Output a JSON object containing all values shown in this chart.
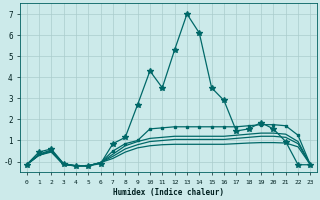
{
  "title": "",
  "xlabel": "Humidex (Indice chaleur)",
  "bg_color": "#cceaea",
  "grid_color": "#aacccc",
  "line_color": "#006868",
  "curves": [
    {
      "x": [
        0,
        1,
        2,
        3,
        4,
        5,
        6,
        7,
        8,
        9,
        10,
        11,
        12,
        13,
        14,
        15,
        16,
        17,
        18,
        19,
        20,
        21,
        22,
        23
      ],
      "y": [
        -0.15,
        0.45,
        0.6,
        -0.1,
        -0.2,
        -0.2,
        -0.1,
        0.85,
        1.15,
        2.7,
        4.3,
        3.5,
        5.3,
        7.0,
        6.1,
        3.5,
        2.9,
        1.45,
        1.55,
        1.85,
        1.55,
        0.95,
        -0.15,
        -0.15
      ],
      "marker": "*",
      "markersize": 4
    },
    {
      "x": [
        0,
        1,
        2,
        3,
        4,
        5,
        6,
        7,
        8,
        9,
        10,
        11,
        12,
        13,
        14,
        15,
        16,
        17,
        18,
        19,
        20,
        21,
        22,
        23
      ],
      "y": [
        -0.15,
        0.35,
        0.55,
        -0.1,
        -0.2,
        -0.2,
        -0.05,
        0.5,
        0.85,
        1.0,
        1.55,
        1.6,
        1.65,
        1.65,
        1.65,
        1.65,
        1.65,
        1.65,
        1.7,
        1.75,
        1.75,
        1.7,
        1.25,
        -0.15
      ],
      "marker": "s",
      "markersize": 2
    },
    {
      "x": [
        0,
        1,
        2,
        3,
        4,
        5,
        6,
        7,
        8,
        9,
        10,
        11,
        12,
        13,
        14,
        15,
        16,
        17,
        18,
        19,
        20,
        21,
        22,
        23
      ],
      "y": [
        -0.15,
        0.3,
        0.5,
        -0.15,
        -0.2,
        -0.2,
        -0.05,
        0.35,
        0.75,
        0.95,
        1.1,
        1.15,
        1.2,
        1.2,
        1.2,
        1.2,
        1.2,
        1.25,
        1.3,
        1.35,
        1.35,
        1.3,
        0.95,
        -0.15
      ],
      "marker": "",
      "markersize": 0
    },
    {
      "x": [
        0,
        1,
        2,
        3,
        4,
        5,
        6,
        7,
        8,
        9,
        10,
        11,
        12,
        13,
        14,
        15,
        16,
        17,
        18,
        19,
        20,
        21,
        22,
        23
      ],
      "y": [
        -0.15,
        0.3,
        0.5,
        -0.15,
        -0.2,
        -0.2,
        -0.05,
        0.25,
        0.6,
        0.8,
        0.95,
        1.0,
        1.05,
        1.05,
        1.05,
        1.05,
        1.05,
        1.1,
        1.15,
        1.2,
        1.2,
        1.15,
        0.85,
        -0.15
      ],
      "marker": "",
      "markersize": 0
    },
    {
      "x": [
        0,
        1,
        2,
        3,
        4,
        5,
        6,
        7,
        8,
        9,
        10,
        11,
        12,
        13,
        14,
        15,
        16,
        17,
        18,
        19,
        20,
        21,
        22,
        23
      ],
      "y": [
        -0.15,
        0.3,
        0.45,
        -0.15,
        -0.2,
        -0.2,
        -0.05,
        0.15,
        0.45,
        0.65,
        0.75,
        0.8,
        0.82,
        0.82,
        0.82,
        0.82,
        0.82,
        0.85,
        0.88,
        0.9,
        0.9,
        0.88,
        0.7,
        -0.15
      ],
      "marker": "",
      "markersize": 0
    }
  ],
  "xlim": [
    -0.5,
    23.5
  ],
  "ylim": [
    -0.5,
    7.5
  ],
  "yticks": [
    0,
    1,
    2,
    3,
    4,
    5,
    6,
    7
  ],
  "ytick_labels": [
    "-0",
    "1",
    "2",
    "3",
    "4",
    "5",
    "6",
    "7"
  ],
  "xticks": [
    0,
    1,
    2,
    3,
    4,
    5,
    6,
    7,
    8,
    9,
    10,
    11,
    12,
    13,
    14,
    15,
    16,
    17,
    18,
    19,
    20,
    21,
    22,
    23
  ],
  "xtick_labels": [
    "0",
    "1",
    "2",
    "3",
    "4",
    "5",
    "6",
    "7",
    "8",
    "9",
    "10",
    "11",
    "12",
    "13",
    "14",
    "15",
    "16",
    "17",
    "18",
    "19",
    "20",
    "21",
    "22",
    "23"
  ]
}
